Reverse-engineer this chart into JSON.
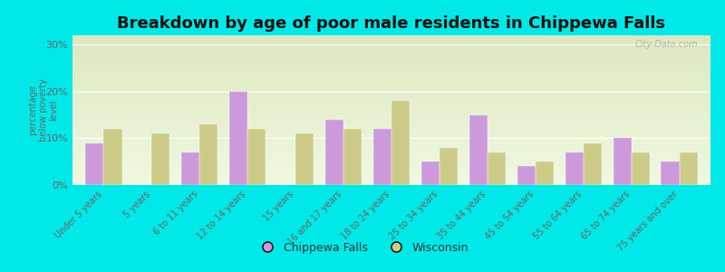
{
  "title": "Breakdown by age of poor male residents in Chippewa Falls",
  "ylabel": "percentage\nbelow poverty\nlevel",
  "categories": [
    "Under 5 years",
    "5 years",
    "6 to 11 years",
    "12 to 14 years",
    "15 years",
    "16 and 17 years",
    "18 to 24 years",
    "25 to 34 years",
    "35 to 44 years",
    "45 to 54 years",
    "55 to 64 years",
    "65 to 74 years",
    "75 years and over"
  ],
  "chippewa_falls": [
    9,
    0,
    7,
    20,
    0,
    14,
    12,
    5,
    15,
    4,
    7,
    10,
    5
  ],
  "wisconsin": [
    12,
    11,
    13,
    12,
    11,
    12,
    18,
    8,
    7,
    5,
    9,
    7,
    7
  ],
  "chippewa_color": "#cc99dd",
  "wisconsin_color": "#cccc88",
  "bg_outer": "#00e8e8",
  "ylim": [
    0,
    32
  ],
  "yticks": [
    0,
    10,
    20,
    30
  ],
  "ytick_labels": [
    "0%",
    "10%",
    "20%",
    "30%"
  ],
  "title_fontsize": 13,
  "bar_width": 0.38,
  "watermark": "City-Data.com"
}
